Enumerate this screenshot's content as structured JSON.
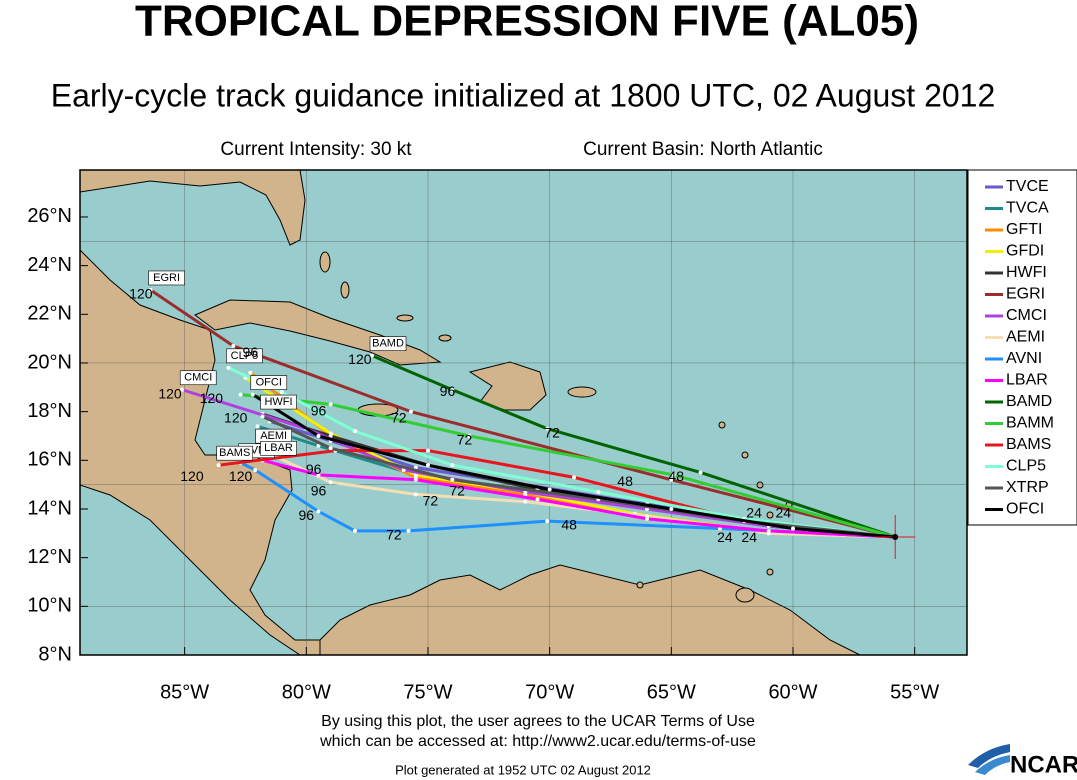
{
  "chart_data": {
    "type": "track-map",
    "title": "TROPICAL DEPRESSION FIVE (AL05)",
    "subtitle": "Early-cycle track guidance initialized at 1800 UTC, 02 August 2012",
    "intensity": "Current Intensity: 30 kt",
    "basin": "Current Basin: North Atlantic",
    "footer": [
      "By using this plot, the user agrees to the UCAR Terms of Use",
      "which can be accessed at: http://www2.ucar.edu/terms-of-use"
    ],
    "generated": "Plot generated at 1952 UTC   02 August 2012",
    "logo": "NCAR",
    "xlim": [
      -89.3,
      -52.85
    ],
    "ylim": [
      8,
      27.93
    ],
    "xticks": [
      {
        "value": -85,
        "label": "85°W"
      },
      {
        "value": -80,
        "label": "80°W"
      },
      {
        "value": -75,
        "label": "75°W"
      },
      {
        "value": -70,
        "label": "70°W"
      },
      {
        "value": -65,
        "label": "65°W"
      },
      {
        "value": -60,
        "label": "60°W"
      },
      {
        "value": -55,
        "label": "55°W"
      }
    ],
    "yticks": [
      {
        "value": 8,
        "label": "8°N"
      },
      {
        "value": 10,
        "label": "10°N"
      },
      {
        "value": 12,
        "label": "12°N"
      },
      {
        "value": 14,
        "label": "14°N"
      },
      {
        "value": 16,
        "label": "16°N"
      },
      {
        "value": 18,
        "label": "18°N"
      },
      {
        "value": 20,
        "label": "20°N"
      },
      {
        "value": 22,
        "label": "22°N"
      },
      {
        "value": 24,
        "label": "24°N"
      },
      {
        "value": 26,
        "label": "26°N"
      }
    ],
    "ygrid": [
      10,
      15,
      20,
      25
    ],
    "grid": true,
    "legend": "right",
    "series": [
      {
        "name": "TVCE",
        "color": "#6a5acd",
        "lon": [
          -55.8,
          -61,
          -66,
          -71,
          -75.5,
          -79,
          -81.5
        ],
        "lat": [
          12.85,
          13.4,
          14.2,
          15,
          15.7,
          16.8,
          17.6
        ]
      },
      {
        "name": "TVCA",
        "color": "#1e8b8b",
        "lon": [
          -55.8,
          -61,
          -66,
          -71,
          -75.5,
          -79.5,
          -82
        ],
        "lat": [
          12.85,
          13.3,
          14,
          14.8,
          15.4,
          16.6,
          17.4
        ]
      },
      {
        "name": "GFTI",
        "color": "#ff8c00",
        "lon": [
          -55.8,
          -61.5,
          -66.5,
          -71,
          -75.5,
          -79,
          -82.3
        ],
        "lat": [
          12.85,
          13.1,
          13.8,
          14.6,
          15.3,
          17,
          19.6
        ]
      },
      {
        "name": "GFDI",
        "color": "#f0f000",
        "lon": [
          -55.8,
          -61.5,
          -66.5,
          -71,
          -75.5,
          -79,
          -82.5
        ],
        "lat": [
          12.85,
          13.1,
          13.8,
          14.7,
          15.4,
          17.1,
          19.4
        ]
      },
      {
        "name": "HWFI",
        "color": "#333333",
        "lon": [
          -55.8,
          -61,
          -66,
          -70.5,
          -75,
          -79,
          -81.8
        ],
        "lat": [
          12.85,
          13.3,
          14.1,
          14.8,
          15.8,
          17,
          17.9
        ],
        "labeled": true
      },
      {
        "name": "EGRI",
        "color": "#9b2d2d",
        "lon": [
          -55.8,
          -65,
          -75.7,
          -83,
          -86.4
        ],
        "lat": [
          12.85,
          15.2,
          18,
          20.7,
          23
        ],
        "labeled": true
      },
      {
        "name": "CMCI",
        "color": "#b040e0",
        "lon": [
          -55.8,
          -61,
          -66,
          -71,
          -76,
          -80,
          -85.1
        ],
        "lat": [
          12.85,
          13.3,
          14,
          14.7,
          15.6,
          17.3,
          18.9
        ],
        "labeled": true
      },
      {
        "name": "AEMI",
        "color": "#f5deb3",
        "lon": [
          -55.8,
          -61,
          -66,
          -71,
          -75.5,
          -79,
          -82
        ],
        "lat": [
          12.85,
          13,
          13.7,
          14.3,
          14.6,
          15.1,
          16.5
        ],
        "labeled": true
      },
      {
        "name": "AVNI",
        "color": "#1e90ff",
        "lon": [
          -55.8,
          -63,
          -70.1,
          -75.8,
          -78,
          -79.5,
          -82.1,
          -82.7
        ],
        "lat": [
          12.85,
          13.2,
          13.5,
          13.1,
          13.1,
          13.9,
          15.6,
          15.9
        ],
        "labeled": true
      },
      {
        "name": "LBAR",
        "color": "#ff00ff",
        "lon": [
          -55.8,
          -61,
          -66,
          -70.5,
          -75.5,
          -79.5,
          -81.8
        ],
        "lat": [
          12.85,
          13.1,
          13.6,
          14.4,
          15.2,
          15.4,
          16
        ],
        "labeled": true
      },
      {
        "name": "BAMD",
        "color": "#006400",
        "lon": [
          -55.8,
          -63.8,
          -70.1,
          -74,
          -77.3
        ],
        "lat": [
          12.85,
          15.5,
          17.3,
          18.9,
          20.3
        ],
        "labeled": true
      },
      {
        "name": "BAMM",
        "color": "#32cd32",
        "lon": [
          -55.8,
          -64.9,
          -73.3,
          -79,
          -82.7
        ],
        "lat": [
          12.85,
          15.4,
          17,
          18.3,
          18.7
        ]
      },
      {
        "name": "BAMS",
        "color": "#e8141e",
        "lon": [
          -55.8,
          -62,
          -69,
          -75,
          -78.8,
          -83.6
        ],
        "lat": [
          12.85,
          13.5,
          15.3,
          16.4,
          16.4,
          15.8
        ],
        "labeled": true
      },
      {
        "name": "CLP5",
        "color": "#7fffd4",
        "lon": [
          -55.8,
          -62,
          -68,
          -74,
          -78,
          -81,
          -83.2
        ],
        "lat": [
          12.85,
          13.6,
          14.7,
          15.8,
          17.2,
          18.8,
          19.8
        ],
        "labeled": true
      },
      {
        "name": "XTRP",
        "color": "#555555",
        "lon": [
          -55.8,
          -62,
          -68,
          -74,
          -79,
          -81.8
        ],
        "lat": [
          12.85,
          13.5,
          14.4,
          15.2,
          16.5,
          17.8
        ]
      },
      {
        "name": "OFCI",
        "color": "#000000",
        "lon": [
          -55.8,
          -60,
          -65,
          -70,
          -75,
          -79.5,
          -82.2
        ],
        "lat": [
          12.85,
          13.2,
          14,
          14.8,
          15.8,
          17,
          18.7
        ],
        "labeled": true
      }
    ],
    "annotations": [
      {
        "text": "96",
        "lon": -82.3,
        "lat": 20.4
      },
      {
        "text": "120",
        "lon": -86.8,
        "lat": 22.8
      },
      {
        "text": "96",
        "lon": -74.2,
        "lat": 18.8
      },
      {
        "text": "72",
        "lon": -76.2,
        "lat": 17.7
      },
      {
        "text": "72",
        "lon": -73.5,
        "lat": 16.8
      },
      {
        "text": "72",
        "lon": -69.9,
        "lat": 17.1
      },
      {
        "text": "48",
        "lon": -64.8,
        "lat": 15.3
      },
      {
        "text": "48",
        "lon": -66.9,
        "lat": 15.1
      },
      {
        "text": "96",
        "lon": -79.5,
        "lat": 18.0
      },
      {
        "text": "72",
        "lon": -76.4,
        "lat": 12.9
      },
      {
        "text": "96",
        "lon": -80,
        "lat": 13.7
      },
      {
        "text": "96",
        "lon": -79.5,
        "lat": 14.7
      },
      {
        "text": "24",
        "lon": -61.6,
        "lat": 13.8
      },
      {
        "text": "24",
        "lon": -60.4,
        "lat": 13.8
      },
      {
        "text": "48",
        "lon": -69.2,
        "lat": 13.3
      },
      {
        "text": "72",
        "lon": -74.9,
        "lat": 14.3
      },
      {
        "text": "72",
        "lon": -73.8,
        "lat": 14.7
      },
      {
        "text": "96",
        "lon": -79.7,
        "lat": 15.6
      },
      {
        "text": "24",
        "lon": -62.8,
        "lat": 12.8
      },
      {
        "text": "24",
        "lon": -61.8,
        "lat": 12.8
      },
      {
        "text": "120",
        "lon": -77.8,
        "lat": 20.1
      },
      {
        "text": "120",
        "lon": -85.6,
        "lat": 18.7
      },
      {
        "text": "120",
        "lon": -83.9,
        "lat": 18.5
      },
      {
        "text": "120",
        "lon": -82.9,
        "lat": 17.7
      },
      {
        "text": "120",
        "lon": -84.7,
        "lat": 15.3
      },
      {
        "text": "120",
        "lon": -82.7,
        "lat": 15.3
      }
    ]
  }
}
